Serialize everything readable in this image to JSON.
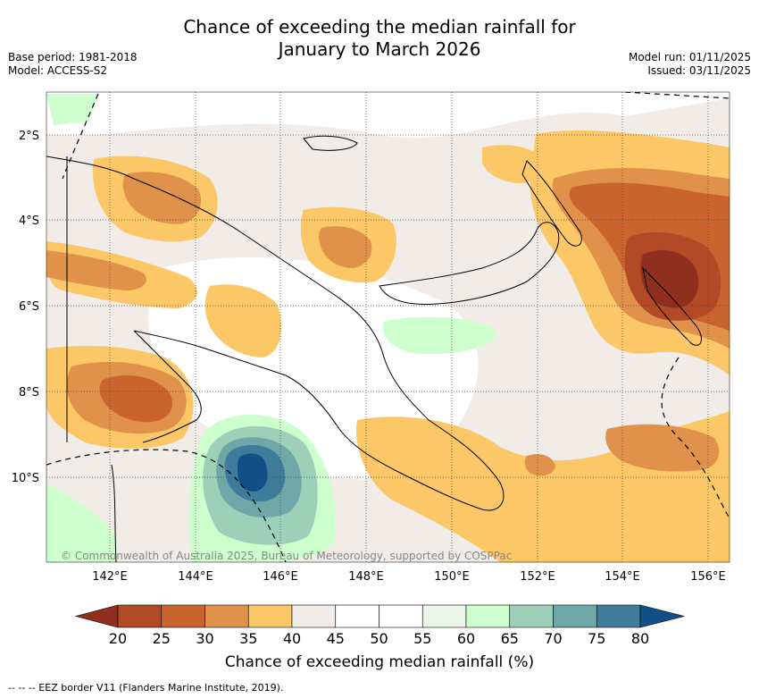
{
  "title_line1": "Chance of exceeding the median rainfall for",
  "title_line2": "January to March 2026",
  "meta_left": [
    "Base period: 1981-2018",
    "Model: ACCESS-S2"
  ],
  "meta_right": [
    "Model run: 01/11/2025",
    "Issued: 03/11/2025"
  ],
  "lat_labels": [
    "2°S",
    "4°S",
    "6°S",
    "8°S",
    "10°S"
  ],
  "lon_labels": [
    "142°E",
    "144°E",
    "146°E",
    "148°E",
    "150°E",
    "152°E",
    "154°E",
    "156°E"
  ],
  "copyright": "© Commonwealth of Australia 2025, Bureau of Meteorology, supported by COSPPac",
  "colorbar": {
    "ticks": [
      "20",
      "25",
      "30",
      "35",
      "40",
      "45",
      "50",
      "55",
      "60",
      "65",
      "70",
      "75",
      "80"
    ],
    "colors": [
      "#8f2f1d",
      "#b24a25",
      "#c9642f",
      "#e0914a",
      "#fcc766",
      "#f1ece7",
      "#ffffff",
      "#ffffff",
      "#ecf5ea",
      "#ccffcc",
      "#9ecfb9",
      "#6ea7a8",
      "#3f7b9a",
      "#114f87"
    ],
    "title": "Chance of exceeding median rainfall (%)"
  },
  "footnote": "--  --  -- EEZ border V11 (Flanders Marine Institute, 2019)."
}
